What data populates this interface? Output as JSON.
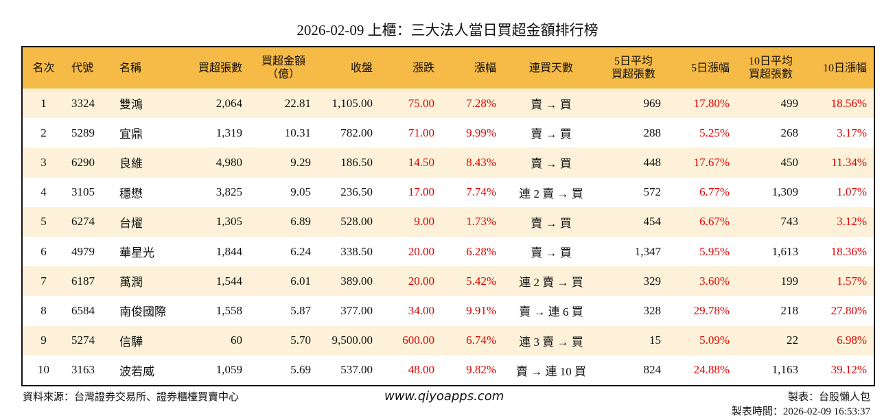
{
  "title": "2026-02-09 上櫃：三大法人當日買超金額排行榜",
  "table": {
    "header": [
      [
        "名次"
      ],
      [
        "代號"
      ],
      [
        "名稱"
      ],
      [
        "買超張數"
      ],
      [
        "買超金額",
        "（億）"
      ],
      [
        "收盤"
      ],
      [
        "漲跌"
      ],
      [
        "漲幅"
      ],
      [
        "連買天數"
      ],
      [
        "5日平均",
        "買超張數"
      ],
      [
        "5日漲幅"
      ],
      [
        "10日平均",
        "買超張數"
      ],
      [
        "10日漲幅"
      ]
    ],
    "rows": [
      [
        "1",
        "3324",
        "雙鴻",
        "2,064",
        "22.81",
        "1,105.00",
        "75.00",
        "7.28%",
        "賣 → 買",
        "969",
        "17.80%",
        "499",
        "18.56%"
      ],
      [
        "2",
        "5289",
        "宜鼎",
        "1,319",
        "10.31",
        "782.00",
        "71.00",
        "9.99%",
        "賣 → 買",
        "288",
        "5.25%",
        "268",
        "3.17%"
      ],
      [
        "3",
        "6290",
        "良維",
        "4,980",
        "9.29",
        "186.50",
        "14.50",
        "8.43%",
        "賣 → 買",
        "448",
        "17.67%",
        "450",
        "11.34%"
      ],
      [
        "4",
        "3105",
        "穩懋",
        "3,825",
        "9.05",
        "236.50",
        "17.00",
        "7.74%",
        "連 2 賣 → 買",
        "572",
        "6.77%",
        "1,309",
        "1.07%"
      ],
      [
        "5",
        "6274",
        "台燿",
        "1,305",
        "6.89",
        "528.00",
        "9.00",
        "1.73%",
        "賣 → 買",
        "454",
        "6.67%",
        "743",
        "3.12%"
      ],
      [
        "6",
        "4979",
        "華星光",
        "1,844",
        "6.24",
        "338.50",
        "20.00",
        "6.28%",
        "賣 → 買",
        "1,347",
        "5.95%",
        "1,613",
        "18.36%"
      ],
      [
        "7",
        "6187",
        "萬潤",
        "1,544",
        "6.01",
        "389.00",
        "20.00",
        "5.42%",
        "連 2 賣 → 買",
        "329",
        "3.60%",
        "199",
        "1.57%"
      ],
      [
        "8",
        "6584",
        "南俊國際",
        "1,558",
        "5.87",
        "377.00",
        "34.00",
        "9.91%",
        "賣 → 連 6 買",
        "328",
        "29.78%",
        "218",
        "27.80%"
      ],
      [
        "9",
        "5274",
        "信驊",
        "60",
        "5.70",
        "9,500.00",
        "600.00",
        "6.74%",
        "連 3 賣 → 買",
        "15",
        "5.09%",
        "22",
        "6.98%"
      ],
      [
        "10",
        "3163",
        "波若威",
        "1,059",
        "5.69",
        "537.00",
        "48.00",
        "9.82%",
        "賣 → 連 10 買",
        "824",
        "24.88%",
        "1,163",
        "39.12%"
      ]
    ]
  },
  "footer": {
    "source": "資料來源：台灣證券交易所、證券櫃檯買賣中心",
    "site": "www.qiyoapps.com",
    "maker": "製表：台股懶人包",
    "time": "製表時間：2026-02-09 16:53:37"
  }
}
